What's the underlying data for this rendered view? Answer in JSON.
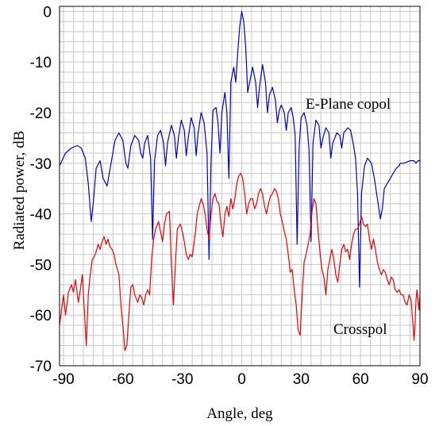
{
  "chart_data": {
    "type": "line",
    "title": "",
    "xlabel": "Angle, deg",
    "ylabel": "Radiated power, dB",
    "xlim": [
      -92,
      90
    ],
    "ylim": [
      -70,
      1
    ],
    "x_ticks": [
      -90,
      -60,
      -30,
      0,
      30,
      60,
      90
    ],
    "x_tick_labels": [
      "-90",
      "-60",
      "-30",
      "0",
      "30",
      "60",
      "90"
    ],
    "y_ticks": [
      0,
      -10,
      -20,
      -30,
      -40,
      -50,
      -60,
      -70
    ],
    "y_tick_labels": [
      "0",
      "-10",
      "-20",
      "-30",
      "-40",
      "-50",
      "-60",
      "-70"
    ],
    "grid": true,
    "series": [
      {
        "name": "E-Plane copol",
        "color": "#0000cc",
        "points": [
          [
            -92,
            -30.5
          ],
          [
            -89,
            -28
          ],
          [
            -86,
            -27
          ],
          [
            -83,
            -26.5
          ],
          [
            -81,
            -27
          ],
          [
            -79,
            -29
          ],
          [
            -77.5,
            -34
          ],
          [
            -76,
            -41.5
          ],
          [
            -75,
            -38
          ],
          [
            -73.5,
            -31
          ],
          [
            -71.5,
            -29.5
          ],
          [
            -70,
            -33
          ],
          [
            -68,
            -34.5
          ],
          [
            -66,
            -30
          ],
          [
            -64,
            -25.5
          ],
          [
            -62,
            -24
          ],
          [
            -60,
            -25.5
          ],
          [
            -58.5,
            -30
          ],
          [
            -57.5,
            -31
          ],
          [
            -56,
            -26.5
          ],
          [
            -54,
            -24.5
          ],
          [
            -52,
            -25.5
          ],
          [
            -51,
            -28
          ],
          [
            -50,
            -29
          ],
          [
            -49,
            -26
          ],
          [
            -47.5,
            -24.5
          ],
          [
            -46,
            -29
          ],
          [
            -45,
            -45
          ],
          [
            -44,
            -29.5
          ],
          [
            -42.5,
            -24.5
          ],
          [
            -41,
            -23.5
          ],
          [
            -39.5,
            -26
          ],
          [
            -38.5,
            -30.5
          ],
          [
            -37.5,
            -26
          ],
          [
            -35.5,
            -22.5
          ],
          [
            -34,
            -24.5
          ],
          [
            -33,
            -29
          ],
          [
            -32,
            -25
          ],
          [
            -30.5,
            -21.5
          ],
          [
            -29,
            -23.5
          ],
          [
            -28,
            -28.5
          ],
          [
            -27,
            -25
          ],
          [
            -25.5,
            -21
          ],
          [
            -24,
            -23
          ],
          [
            -23,
            -28.5
          ],
          [
            -22,
            -24
          ],
          [
            -20.5,
            -20
          ],
          [
            -19,
            -22
          ],
          [
            -17.5,
            -28
          ],
          [
            -16.5,
            -49
          ],
          [
            -15.5,
            -30
          ],
          [
            -14.5,
            -19.5
          ],
          [
            -13,
            -19
          ],
          [
            -12,
            -22
          ],
          [
            -11,
            -28
          ],
          [
            -10,
            -20
          ],
          [
            -8.5,
            -16
          ],
          [
            -7.5,
            -20
          ],
          [
            -6.5,
            -33
          ],
          [
            -5.5,
            -14
          ],
          [
            -4,
            -11
          ],
          [
            -3,
            -14
          ],
          [
            -2,
            -8
          ],
          [
            -1,
            -3
          ],
          [
            0,
            0
          ],
          [
            1,
            -2
          ],
          [
            2,
            -7
          ],
          [
            3,
            -16
          ],
          [
            4,
            -14
          ],
          [
            5.5,
            -11
          ],
          [
            7,
            -14
          ],
          [
            8,
            -19
          ],
          [
            9,
            -15
          ],
          [
            10.5,
            -10.5
          ],
          [
            12,
            -14
          ],
          [
            13,
            -20
          ],
          [
            14,
            -16.5
          ],
          [
            15.5,
            -15
          ],
          [
            17,
            -17.5
          ],
          [
            18,
            -22
          ],
          [
            19,
            -19.5
          ],
          [
            20,
            -18.5
          ],
          [
            21.5,
            -20
          ],
          [
            22.5,
            -23.5
          ],
          [
            23.5,
            -20
          ],
          [
            25,
            -19
          ],
          [
            26,
            -21
          ],
          [
            27,
            -24.5
          ],
          [
            28,
            -46
          ],
          [
            29,
            -27
          ],
          [
            30,
            -21
          ],
          [
            31.5,
            -20
          ],
          [
            33,
            -22.5
          ],
          [
            34,
            -27.5
          ],
          [
            35,
            -45.5
          ],
          [
            36,
            -26
          ],
          [
            37.5,
            -21.5
          ],
          [
            39,
            -22.5
          ],
          [
            40,
            -27
          ],
          [
            41,
            -25
          ],
          [
            42.5,
            -23
          ],
          [
            44,
            -24
          ],
          [
            45,
            -29
          ],
          [
            46,
            -26
          ],
          [
            48,
            -24
          ],
          [
            49.5,
            -24.5
          ],
          [
            50.5,
            -27
          ],
          [
            51.5,
            -24
          ],
          [
            53.5,
            -23
          ],
          [
            55,
            -23.5
          ],
          [
            56.5,
            -26.5
          ],
          [
            57.5,
            -29
          ],
          [
            58.5,
            -36
          ],
          [
            59.5,
            -54.5
          ],
          [
            60.5,
            -36
          ],
          [
            62,
            -30.5
          ],
          [
            63.5,
            -29
          ],
          [
            65.5,
            -30
          ],
          [
            67,
            -33
          ],
          [
            68.5,
            -37
          ],
          [
            70,
            -41
          ],
          [
            71,
            -39
          ],
          [
            72,
            -35
          ],
          [
            73.5,
            -34
          ],
          [
            75,
            -33
          ],
          [
            76.5,
            -32
          ],
          [
            78,
            -31
          ],
          [
            79.5,
            -30.5
          ],
          [
            80,
            -30
          ],
          [
            82,
            -30
          ],
          [
            85,
            -29.5
          ],
          [
            87,
            -29.5
          ],
          [
            88,
            -30
          ],
          [
            89,
            -29.5
          ],
          [
            90,
            -29.5
          ]
        ]
      },
      {
        "name": "Crosspol",
        "color": "#ee0000",
        "points": [
          [
            -92,
            -62
          ],
          [
            -91,
            -59
          ],
          [
            -90,
            -56
          ],
          [
            -89,
            -60
          ],
          [
            -87.5,
            -55.5
          ],
          [
            -86,
            -54
          ],
          [
            -85,
            -55.5
          ],
          [
            -84,
            -53
          ],
          [
            -82.5,
            -57.5
          ],
          [
            -81.5,
            -55
          ],
          [
            -80.5,
            -52
          ],
          [
            -79.5,
            -59
          ],
          [
            -78.5,
            -66
          ],
          [
            -77.5,
            -56
          ],
          [
            -76.5,
            -52
          ],
          [
            -75.5,
            -49
          ],
          [
            -74.5,
            -48.5
          ],
          [
            -73.5,
            -47.5
          ],
          [
            -72.5,
            -46
          ],
          [
            -71.5,
            -47
          ],
          [
            -70.5,
            -45.5
          ],
          [
            -69.5,
            -44.5
          ],
          [
            -68.5,
            -46
          ],
          [
            -67.5,
            -45
          ],
          [
            -66.5,
            -46.5
          ],
          [
            -65.5,
            -47
          ],
          [
            -64.5,
            -48
          ],
          [
            -63.5,
            -50
          ],
          [
            -62,
            -52
          ],
          [
            -61,
            -58
          ],
          [
            -60,
            -62
          ],
          [
            -59,
            -67
          ],
          [
            -58,
            -66
          ],
          [
            -57,
            -60
          ],
          [
            -56,
            -54.5
          ],
          [
            -55,
            -54
          ],
          [
            -54,
            -56
          ],
          [
            -52.5,
            -57.5
          ],
          [
            -51.5,
            -56
          ],
          [
            -50.5,
            -56.5
          ],
          [
            -49.5,
            -58
          ],
          [
            -48.5,
            -56
          ],
          [
            -47.5,
            -55
          ],
          [
            -46.5,
            -56
          ],
          [
            -45.5,
            -49
          ],
          [
            -44.5,
            -45
          ],
          [
            -43.5,
            -43
          ],
          [
            -42,
            -41.5
          ],
          [
            -41,
            -43.5
          ],
          [
            -40,
            -45.5
          ],
          [
            -39,
            -42
          ],
          [
            -38,
            -40
          ],
          [
            -36.5,
            -39.5
          ],
          [
            -35.5,
            -50
          ],
          [
            -34.5,
            -58
          ],
          [
            -33.5,
            -50
          ],
          [
            -32.5,
            -43
          ],
          [
            -31,
            -42
          ],
          [
            -30,
            -43.5
          ],
          [
            -29,
            -45.5
          ],
          [
            -28,
            -48
          ],
          [
            -27,
            -49
          ],
          [
            -26,
            -48
          ],
          [
            -25,
            -48.5
          ],
          [
            -23.5,
            -44
          ],
          [
            -22.5,
            -40
          ],
          [
            -21.5,
            -38.5
          ],
          [
            -20.5,
            -37
          ],
          [
            -19.5,
            -38
          ],
          [
            -18.5,
            -40
          ],
          [
            -17.5,
            -43
          ],
          [
            -16.5,
            -45
          ],
          [
            -15.5,
            -40
          ],
          [
            -14.5,
            -37
          ],
          [
            -13.5,
            -36
          ],
          [
            -12.5,
            -37.5
          ],
          [
            -11.5,
            -38
          ],
          [
            -10.5,
            -42
          ],
          [
            -9.5,
            -44.5
          ],
          [
            -8.5,
            -40
          ],
          [
            -7.5,
            -38.5
          ],
          [
            -6.5,
            -40.5
          ],
          [
            -5.5,
            -37
          ],
          [
            -4.5,
            -39
          ],
          [
            -3.5,
            -37
          ],
          [
            -2.5,
            -34
          ],
          [
            -1.5,
            -32.5
          ],
          [
            -0.5,
            -32
          ],
          [
            0.5,
            -33
          ],
          [
            1.5,
            -36
          ],
          [
            2.5,
            -40
          ],
          [
            3.5,
            -38
          ],
          [
            4.5,
            -37
          ],
          [
            5.5,
            -37
          ],
          [
            6.5,
            -39
          ],
          [
            7.5,
            -38
          ],
          [
            8.5,
            -36
          ],
          [
            9.5,
            -35
          ],
          [
            10.5,
            -36
          ],
          [
            11.5,
            -38.5
          ],
          [
            12.5,
            -40
          ],
          [
            13.5,
            -38
          ],
          [
            14.5,
            -36.5
          ],
          [
            15.5,
            -36
          ],
          [
            16.5,
            -35
          ],
          [
            17.5,
            -35.5
          ],
          [
            18.5,
            -37
          ],
          [
            19.5,
            -40
          ],
          [
            20.5,
            -41.5
          ],
          [
            21.5,
            -43.5
          ],
          [
            22.5,
            -45
          ],
          [
            23.5,
            -48
          ],
          [
            24.5,
            -51.5
          ],
          [
            25.5,
            -51
          ],
          [
            26.5,
            -55
          ],
          [
            27.5,
            -58
          ],
          [
            28.5,
            -63
          ],
          [
            29.5,
            -64
          ],
          [
            30.5,
            -56
          ],
          [
            31.5,
            -49.5
          ],
          [
            32.5,
            -48
          ],
          [
            33.5,
            -46
          ],
          [
            34.5,
            -44
          ],
          [
            35.5,
            -39.5
          ],
          [
            36.5,
            -37
          ],
          [
            37.5,
            -38
          ],
          [
            38.5,
            -43
          ],
          [
            39.5,
            -47.5
          ],
          [
            40.5,
            -51
          ],
          [
            41.5,
            -52.5
          ],
          [
            42.5,
            -56
          ],
          [
            43.5,
            -51
          ],
          [
            44.5,
            -49
          ],
          [
            45.5,
            -47
          ],
          [
            46.5,
            -49
          ],
          [
            47.5,
            -52
          ],
          [
            48.5,
            -53.5
          ],
          [
            49.5,
            -50
          ],
          [
            50.5,
            -47
          ],
          [
            51.5,
            -46
          ],
          [
            52.5,
            -47.5
          ],
          [
            53.5,
            -47
          ],
          [
            54.5,
            -49
          ],
          [
            55.5,
            -46
          ],
          [
            56.5,
            -44
          ],
          [
            57.5,
            -43
          ],
          [
            58.5,
            -43
          ],
          [
            59.5,
            -42
          ],
          [
            60.5,
            -40.5
          ],
          [
            61.5,
            -42
          ],
          [
            62.5,
            -42.5
          ],
          [
            63.5,
            -42
          ],
          [
            64.5,
            -45
          ],
          [
            65.5,
            -47
          ],
          [
            66.5,
            -45
          ],
          [
            67.5,
            -47
          ],
          [
            68.5,
            -49.5
          ],
          [
            69.5,
            -51
          ],
          [
            70.5,
            -52
          ],
          [
            71.5,
            -51
          ],
          [
            72.5,
            -51.5
          ],
          [
            73.5,
            -53
          ],
          [
            74.5,
            -54
          ],
          [
            75.5,
            -52.5
          ],
          [
            76.5,
            -53
          ],
          [
            77.5,
            -55
          ],
          [
            78.5,
            -55.5
          ],
          [
            79.5,
            -55
          ],
          [
            80.5,
            -56
          ],
          [
            81.5,
            -56
          ],
          [
            82.5,
            -57.5
          ],
          [
            83.5,
            -58
          ],
          [
            84.5,
            -56
          ],
          [
            85.5,
            -57
          ],
          [
            86.5,
            -62
          ],
          [
            87,
            -65
          ],
          [
            87.5,
            -62
          ],
          [
            88,
            -57
          ],
          [
            88.5,
            -55
          ],
          [
            89,
            -57
          ],
          [
            89.5,
            -59
          ],
          [
            90,
            -56
          ]
        ]
      }
    ],
    "annotations": [
      {
        "text": "E-Plane copol"
      },
      {
        "text": "Crosspol"
      }
    ]
  }
}
